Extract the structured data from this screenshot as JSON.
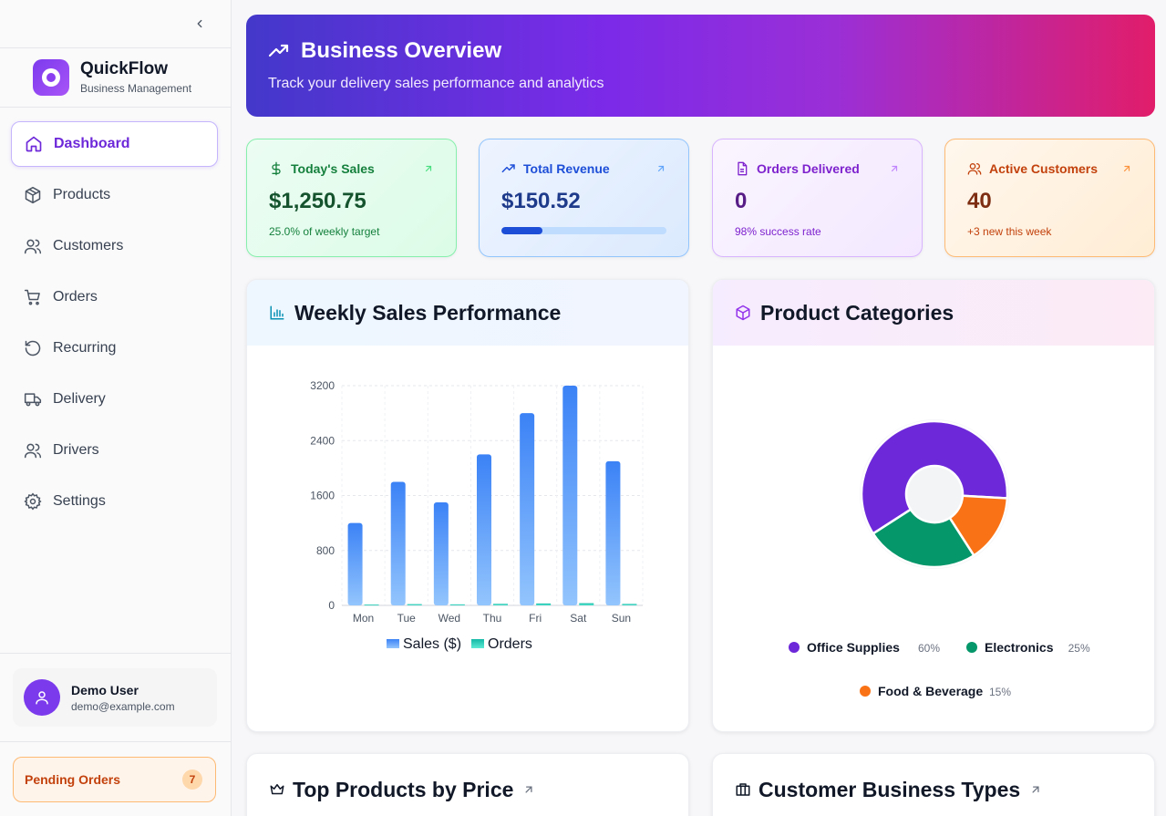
{
  "sidebar": {
    "brand_name": "QuickFlow",
    "brand_sub": "Business Management",
    "nav": [
      {
        "label": "Dashboard",
        "icon": "home-icon",
        "active": true
      },
      {
        "label": "Products",
        "icon": "package-icon"
      },
      {
        "label": "Customers",
        "icon": "users-icon"
      },
      {
        "label": "Orders",
        "icon": "cart-icon"
      },
      {
        "label": "Recurring",
        "icon": "rotate-icon"
      },
      {
        "label": "Delivery",
        "icon": "truck-icon"
      },
      {
        "label": "Drivers",
        "icon": "users-icon"
      },
      {
        "label": "Settings",
        "icon": "gear-icon"
      }
    ],
    "user": {
      "name": "Demo User",
      "email": "demo@example.com"
    },
    "pending": {
      "label": "Pending Orders",
      "count": "7"
    }
  },
  "hero": {
    "title": "Business Overview",
    "subtitle": "Track your delivery sales performance and analytics"
  },
  "stats": [
    {
      "label": "Today's Sales",
      "value": "$1,250.75",
      "sub": "25.0% of weekly target"
    },
    {
      "label": "Total Revenue",
      "value": "$150.52",
      "progress": 0.25
    },
    {
      "label": "Orders Delivered",
      "value": "0",
      "sub": "98% success rate"
    },
    {
      "label": "Active Customers",
      "value": "40",
      "sub": "+3 new this week"
    }
  ],
  "cards": {
    "weekly_title": "Weekly Sales Performance",
    "categories_title": "Product Categories",
    "top_products_title": "Top Products by Price",
    "business_types_title": "Customer Business Types"
  },
  "colors": {
    "accent": "#7c3aed",
    "sales_bar": "#3b82f6",
    "orders_bar": "#2dd4bf",
    "office": "#6d28d9",
    "electronics": "#059669",
    "food": "#f97316"
  },
  "chart_data": [
    {
      "type": "bar",
      "categories": [
        "Mon",
        "Tue",
        "Wed",
        "Thu",
        "Fri",
        "Sat",
        "Sun"
      ],
      "series": [
        {
          "name": "Sales ($)",
          "values": [
            1200,
            1800,
            1500,
            2200,
            2800,
            3200,
            2100
          ]
        },
        {
          "name": "Orders",
          "values": [
            12,
            18,
            15,
            22,
            28,
            32,
            21
          ]
        }
      ],
      "ylim": [
        0,
        3200
      ],
      "yticks": [
        "0",
        "800",
        "1600",
        "2400",
        "3200"
      ],
      "grid": true,
      "legend": "bottom"
    },
    {
      "type": "pie",
      "donut": true,
      "labels": [
        "Office Supplies",
        "Electronics",
        "Food & Beverage"
      ],
      "values": [
        60,
        25,
        15
      ],
      "percent_labels": [
        "60%",
        "25%",
        "15%"
      ],
      "legend": "bottom"
    }
  ]
}
